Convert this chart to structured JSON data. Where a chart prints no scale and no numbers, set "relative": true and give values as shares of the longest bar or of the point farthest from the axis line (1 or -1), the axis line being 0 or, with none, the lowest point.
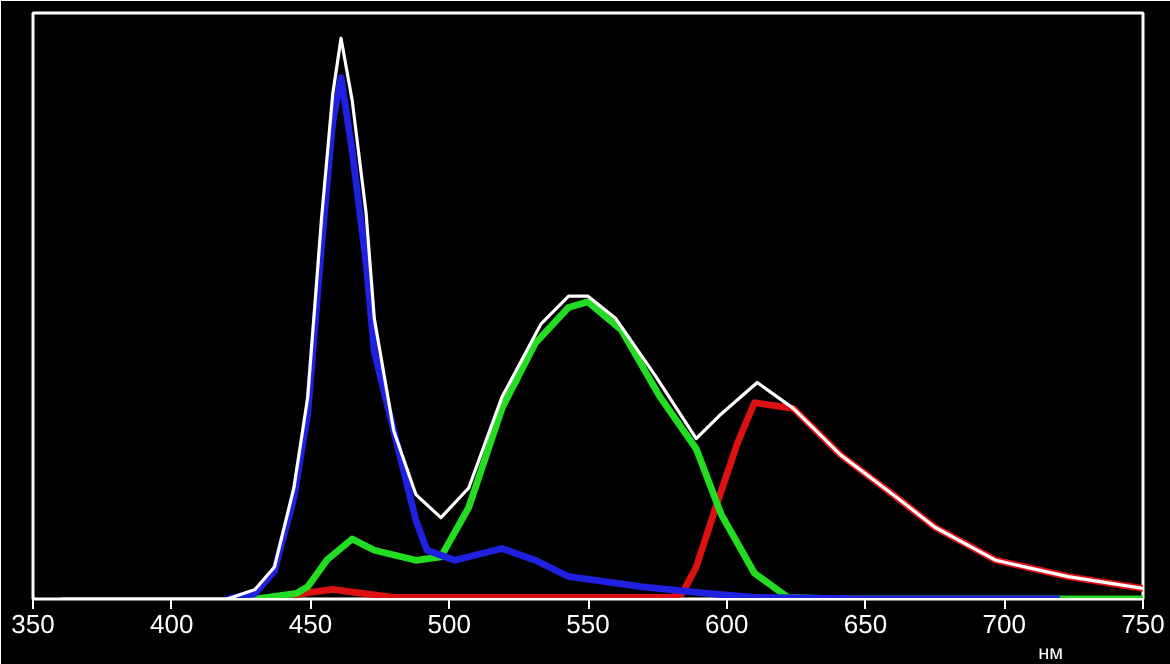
{
  "chart_data": {
    "type": "line",
    "relative": true,
    "xlabel": "нм",
    "xlim": [
      350,
      750
    ],
    "xticks": [
      350,
      400,
      450,
      500,
      550,
      600,
      650,
      700,
      750
    ],
    "grid": false,
    "series": [
      {
        "color": "#ffffff",
        "x": [
          360,
          420,
          430,
          437,
          444,
          449,
          454,
          458,
          461,
          465,
          470,
          473,
          480,
          488,
          497,
          507,
          519,
          533,
          543,
          550,
          560,
          574,
          589,
          598,
          611,
          624,
          641,
          660,
          675,
          697,
          723,
          750
        ],
        "values": [
          0,
          0,
          0.017,
          0.057,
          0.198,
          0.36,
          0.68,
          0.9,
          1.0,
          0.89,
          0.69,
          0.5,
          0.3,
          0.186,
          0.145,
          0.198,
          0.36,
          0.49,
          0.54,
          0.54,
          0.5,
          0.4,
          0.286,
          0.33,
          0.386,
          0.34,
          0.257,
          0.186,
          0.128,
          0.069,
          0.04,
          0.019
        ]
      },
      {
        "color": "#2020e0",
        "x": [
          420,
          430,
          437,
          444,
          449,
          454,
          458,
          461,
          465,
          470,
          473,
          478,
          488,
          492,
          502,
          519,
          531,
          543,
          555,
          569,
          593,
          610,
          650,
          720
        ],
        "values": [
          0,
          0.01,
          0.05,
          0.18,
          0.33,
          0.63,
          0.85,
          0.93,
          0.8,
          0.6,
          0.44,
          0.34,
          0.14,
          0.087,
          0.069,
          0.09,
          0.069,
          0.04,
          0.032,
          0.022,
          0.01,
          0.003,
          0,
          0
        ]
      },
      {
        "color": "#22dd22",
        "x": [
          430,
          445,
          449,
          456,
          465,
          473,
          488,
          497,
          507,
          519,
          531,
          543,
          550,
          562,
          576,
          589,
          598,
          610,
          622,
          640,
          750
        ],
        "values": [
          0,
          0.01,
          0.022,
          0.07,
          0.107,
          0.087,
          0.069,
          0.075,
          0.163,
          0.34,
          0.456,
          0.52,
          0.53,
          0.48,
          0.36,
          0.268,
          0.151,
          0.046,
          0.003,
          0,
          0
        ]
      },
      {
        "color": "#dd1111",
        "x": [
          440,
          450,
          458,
          466,
          480,
          580,
          584,
          589,
          596,
          604,
          610,
          624,
          641,
          660,
          675,
          697,
          723,
          750
        ],
        "values": [
          0.003,
          0.012,
          0.017,
          0.012,
          0.003,
          0.003,
          0.01,
          0.057,
          0.163,
          0.28,
          0.35,
          0.34,
          0.257,
          0.186,
          0.128,
          0.069,
          0.04,
          0.019
        ]
      }
    ]
  }
}
